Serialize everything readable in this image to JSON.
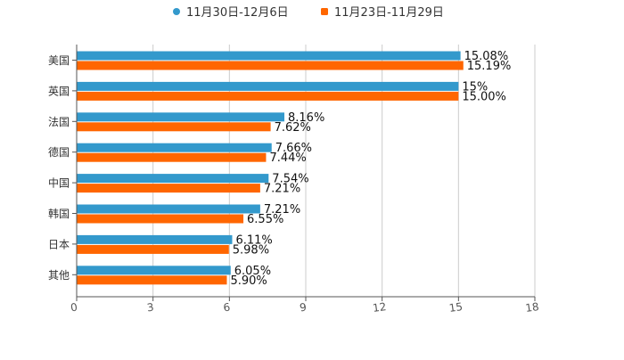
{
  "chart_data": {
    "type": "bar",
    "orientation": "horizontal",
    "categories": [
      "美国",
      "英国",
      "法国",
      "德国",
      "中国",
      "韩国",
      "日本",
      "其他"
    ],
    "series": [
      {
        "name": "11月30日-12月6日",
        "color": "#3399cc",
        "values": [
          15.08,
          15,
          8.16,
          7.66,
          7.54,
          7.21,
          6.11,
          6.05
        ],
        "labels": [
          "15.08%",
          "15%",
          "8.16%",
          "7.66%",
          "7.54%",
          "7.21%",
          "6.11%",
          "6.05%"
        ]
      },
      {
        "name": "11月23日-11月29日",
        "color": "#ff6600",
        "values": [
          15.19,
          15.0,
          7.62,
          7.44,
          7.21,
          6.55,
          5.98,
          5.9
        ],
        "labels": [
          "15.19%",
          "15.00%",
          "7.62%",
          "7.44%",
          "7.21%",
          "6.55%",
          "5.98%",
          "5.90%"
        ]
      }
    ],
    "xlim": [
      0,
      18
    ],
    "xticks": [
      0,
      3,
      6,
      9,
      12,
      15,
      18
    ],
    "xtick_labels": [
      "0",
      "3",
      "6",
      "9",
      "12",
      "15",
      "18"
    ],
    "title": "",
    "xlabel": "",
    "ylabel": "",
    "grid": true,
    "legend_position": "top-center"
  }
}
